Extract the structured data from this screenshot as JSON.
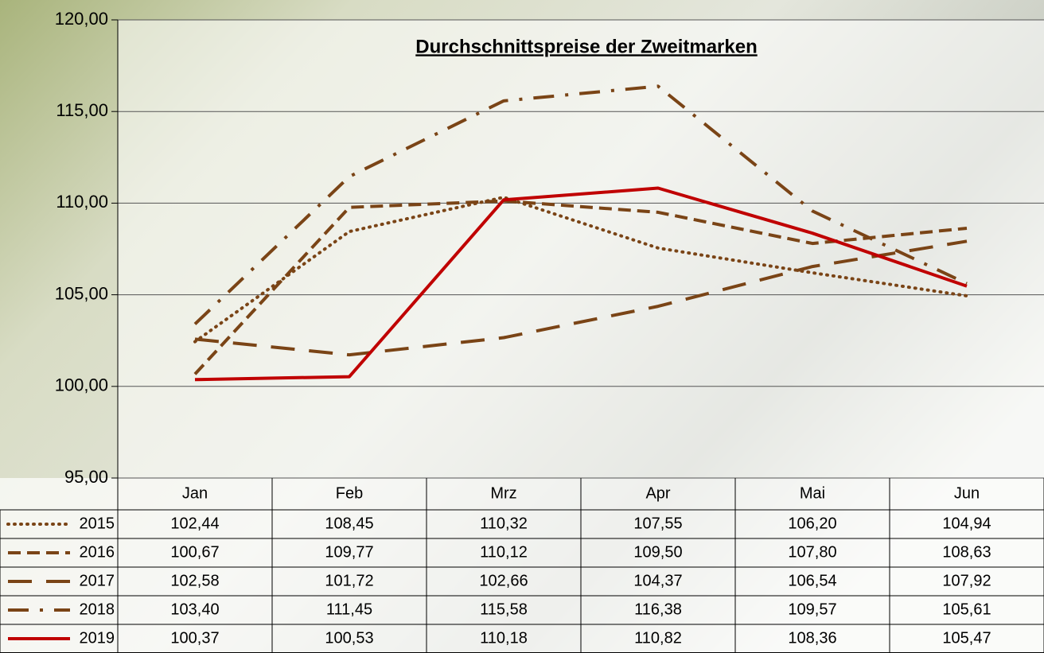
{
  "chart_data": {
    "type": "line",
    "title": "Durchschnittspreise der Zweitmarken",
    "categories": [
      "Jan",
      "Feb",
      "Mrz",
      "Apr",
      "Mai",
      "Jun"
    ],
    "ylim": [
      95,
      120
    ],
    "yticks": [
      {
        "value": 95,
        "label": "95,00"
      },
      {
        "value": 100,
        "label": "100,00"
      },
      {
        "value": 105,
        "label": "105,00"
      },
      {
        "value": 110,
        "label": "110,00"
      },
      {
        "value": 115,
        "label": "115,00"
      },
      {
        "value": 120,
        "label": "120,00"
      }
    ],
    "grid": true,
    "series": [
      {
        "name": "2015",
        "color": "#7a4416",
        "dash": "dotted",
        "values": [
          102.44,
          108.45,
          110.32,
          107.55,
          106.2,
          104.94
        ],
        "value_labels": [
          "102,44",
          "108,45",
          "110,32",
          "107,55",
          "106,20",
          "104,94"
        ]
      },
      {
        "name": "2016",
        "color": "#7a4416",
        "dash": "short-dash",
        "values": [
          100.67,
          109.77,
          110.12,
          109.5,
          107.8,
          108.63
        ],
        "value_labels": [
          "100,67",
          "109,77",
          "110,12",
          "109,50",
          "107,80",
          "108,63"
        ]
      },
      {
        "name": "2017",
        "color": "#7a4416",
        "dash": "long-dash",
        "values": [
          102.58,
          101.72,
          102.66,
          104.37,
          106.54,
          107.92
        ],
        "value_labels": [
          "102,58",
          "101,72",
          "102,66",
          "104,37",
          "106,54",
          "107,92"
        ]
      },
      {
        "name": "2018",
        "color": "#7a4416",
        "dash": "dash-dot",
        "values": [
          103.4,
          111.45,
          115.58,
          116.38,
          109.57,
          105.61
        ],
        "value_labels": [
          "103,40",
          "111,45",
          "115,58",
          "116,38",
          "109,57",
          "105,61"
        ]
      },
      {
        "name": "2019",
        "color": "#c00000",
        "dash": "solid",
        "values": [
          100.37,
          100.53,
          110.18,
          110.82,
          108.36,
          105.47
        ],
        "value_labels": [
          "100,37",
          "100,53",
          "110,18",
          "110,82",
          "108,36",
          "105,47"
        ]
      }
    ]
  }
}
